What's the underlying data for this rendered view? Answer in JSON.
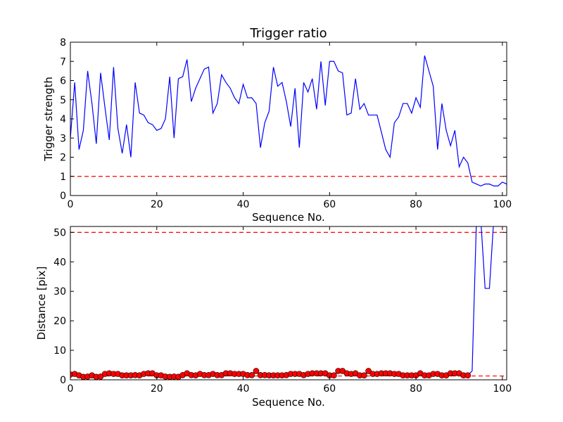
{
  "chart_data": [
    {
      "type": "line",
      "title": "Trigger ratio",
      "xlabel": "Sequence No.",
      "ylabel": "Trigger strength",
      "xlim": [
        0,
        101
      ],
      "ylim": [
        0,
        8
      ],
      "xticks": [
        "0",
        "20",
        "40",
        "60",
        "80",
        "100"
      ],
      "yticks": [
        "0",
        "1",
        "2",
        "3",
        "4",
        "5",
        "6",
        "7",
        "8"
      ],
      "grid": false,
      "threshold": {
        "value": 1,
        "color": "#ff0000",
        "style": "dashed"
      },
      "series": [
        {
          "color": "#0000ff",
          "x": [
            0,
            1,
            2,
            3,
            4,
            5,
            6,
            7,
            8,
            9,
            10,
            11,
            12,
            13,
            14,
            15,
            16,
            17,
            18,
            19,
            20,
            21,
            22,
            23,
            24,
            25,
            26,
            27,
            28,
            29,
            30,
            31,
            32,
            33,
            34,
            35,
            36,
            37,
            38,
            39,
            40,
            41,
            42,
            43,
            44,
            45,
            46,
            47,
            48,
            49,
            50,
            51,
            52,
            53,
            54,
            55,
            56,
            57,
            58,
            59,
            60,
            61,
            62,
            63,
            64,
            65,
            66,
            67,
            68,
            69,
            70,
            71,
            72,
            73,
            74,
            75,
            76,
            77,
            78,
            79,
            80,
            81,
            82,
            83,
            84,
            85,
            86,
            87,
            88,
            89,
            90,
            91,
            92,
            93,
            94,
            95,
            96,
            97,
            98,
            99,
            100,
            101
          ],
          "y": [
            3.0,
            5.9,
            2.4,
            3.4,
            6.5,
            4.8,
            2.7,
            6.4,
            4.6,
            2.9,
            6.7,
            3.5,
            2.2,
            3.7,
            2.0,
            5.9,
            4.3,
            4.2,
            3.8,
            3.7,
            3.4,
            3.5,
            4.0,
            6.2,
            3.0,
            6.1,
            6.2,
            7.1,
            4.9,
            5.6,
            6.1,
            6.6,
            6.7,
            4.3,
            4.8,
            6.3,
            5.9,
            5.6,
            5.1,
            4.8,
            5.8,
            5.1,
            5.1,
            4.8,
            2.5,
            3.8,
            4.4,
            6.7,
            5.7,
            5.9,
            4.9,
            3.6,
            5.6,
            2.5,
            5.9,
            5.4,
            6.1,
            4.5,
            7.0,
            4.7,
            7.0,
            7.0,
            6.5,
            6.4,
            4.2,
            4.3,
            6.1,
            4.5,
            4.8,
            4.2,
            4.2,
            4.2,
            3.3,
            2.4,
            2.0,
            3.8,
            4.1,
            4.8,
            4.8,
            4.3,
            5.1,
            4.6,
            7.3,
            6.5,
            5.7,
            2.4,
            4.8,
            3.4,
            2.6,
            3.4,
            1.5,
            2.0,
            1.7,
            0.7,
            0.6,
            0.5,
            0.6,
            0.6,
            0.5,
            0.5,
            0.7,
            0.6
          ]
        }
      ]
    },
    {
      "type": "line",
      "title": "",
      "xlabel": "Sequence No.",
      "ylabel": "Distance [pix]",
      "xlim": [
        0,
        101
      ],
      "ylim": [
        0,
        52
      ],
      "xticks": [
        "0",
        "20",
        "40",
        "60",
        "80",
        "100"
      ],
      "yticks": [
        "0",
        "10",
        "20",
        "30",
        "40",
        "50"
      ],
      "grid": false,
      "thresholds": [
        {
          "value": 50,
          "color": "#ff0000",
          "style": "dashed"
        },
        {
          "value": 1.3,
          "color": "#ff0000",
          "style": "dashed"
        }
      ],
      "series": [
        {
          "color": "#0000ff",
          "marker": "circle",
          "marker_color": "#ff0000",
          "x": [
            0,
            1,
            2,
            3,
            4,
            5,
            6,
            7,
            8,
            9,
            10,
            11,
            12,
            13,
            14,
            15,
            16,
            17,
            18,
            19,
            20,
            21,
            22,
            23,
            24,
            25,
            26,
            27,
            28,
            29,
            30,
            31,
            32,
            33,
            34,
            35,
            36,
            37,
            38,
            39,
            40,
            41,
            42,
            43,
            44,
            45,
            46,
            47,
            48,
            49,
            50,
            51,
            52,
            53,
            54,
            55,
            56,
            57,
            58,
            59,
            60,
            61,
            62,
            63,
            64,
            65,
            66,
            67,
            68,
            69,
            70,
            71,
            72,
            73,
            74,
            75,
            76,
            77,
            78,
            79,
            80,
            81,
            82,
            83,
            84,
            85,
            86,
            87,
            88,
            89,
            90,
            91,
            92,
            93,
            94,
            95,
            96,
            97,
            98,
            99,
            100,
            101
          ],
          "y": [
            1.8,
            2.0,
            1.5,
            1.0,
            1.1,
            1.5,
            1.0,
            1.1,
            2.0,
            2.2,
            2.0,
            2.0,
            1.5,
            1.5,
            1.5,
            1.6,
            1.5,
            2.0,
            2.2,
            2.2,
            1.5,
            1.5,
            1.1,
            1.0,
            1.1,
            1.0,
            1.6,
            2.2,
            1.6,
            1.5,
            2.0,
            1.6,
            1.6,
            2.0,
            1.6,
            1.6,
            2.2,
            2.2,
            2.0,
            2.0,
            2.0,
            1.6,
            1.6,
            3.0,
            1.6,
            1.6,
            1.5,
            1.5,
            1.5,
            1.5,
            1.6,
            2.0,
            2.0,
            2.0,
            1.6,
            2.0,
            2.2,
            2.2,
            2.2,
            2.2,
            1.5,
            1.5,
            3.0,
            3.0,
            2.2,
            2.0,
            2.2,
            1.5,
            1.5,
            3.0,
            2.0,
            2.0,
            2.2,
            2.2,
            2.2,
            2.0,
            2.0,
            1.5,
            1.5,
            1.5,
            1.5,
            2.2,
            1.5,
            1.5,
            2.0,
            2.0,
            1.5,
            1.5,
            2.2,
            2.2,
            2.2,
            1.5,
            1.5,
            3.0,
            null,
            null,
            31,
            31,
            null,
            null,
            null,
            null
          ],
          "marker_count": 93
        }
      ]
    }
  ]
}
